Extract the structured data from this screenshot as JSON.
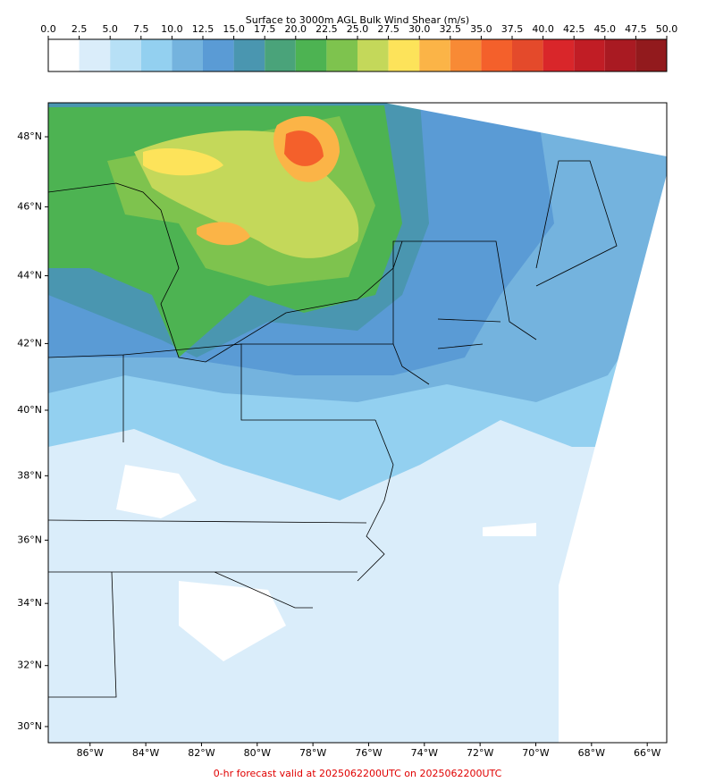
{
  "map": {
    "colorbar": {
      "title": "Surface to 3000m AGL Bulk Wind Shear (m/s)",
      "lim": [
        0,
        50
      ],
      "ticks": [
        {
          "value": 0,
          "label": "0.0"
        },
        2.5,
        {
          "value": 5,
          "label": "5.0"
        },
        7.5,
        {
          "value": 10,
          "label": "10.0"
        },
        12.5,
        {
          "value": 15,
          "label": "15.0"
        },
        17.5,
        {
          "value": 20,
          "label": "20.0"
        },
        22.5,
        {
          "value": 25,
          "label": "25.0"
        },
        27.5,
        {
          "value": 30,
          "label": "30.0"
        },
        32.5,
        {
          "value": 35,
          "label": "35.0"
        },
        37.5,
        {
          "value": 40,
          "label": "40.0"
        },
        42.5,
        {
          "value": 45,
          "label": "45.0"
        },
        47.5,
        {
          "value": 50,
          "label": "50.0"
        }
      ],
      "colors": [
        "#ffffff",
        "#daedfa",
        "#b7e0f6",
        "#93d0f0",
        "#74b3de",
        "#5a9bd5",
        "#4a96b0",
        "#4aa37a",
        "#4db352",
        "#7ec34e",
        "#c4d85a",
        "#fde35a",
        "#fbb447",
        "#f88a35",
        "#f4602b",
        "#e44a2b",
        "#d9262a",
        "#c11d25",
        "#a91a22",
        "#921a1d"
      ]
    },
    "lon_lim": [
      -87.5,
      -65.3
    ],
    "lat_lim": [
      29.5,
      49
    ],
    "lon_ticks": [
      {
        "value": -86,
        "label": "86°W"
      },
      {
        "value": -84,
        "label": "84°W"
      },
      {
        "value": -82,
        "label": "82°W"
      },
      {
        "value": -80,
        "label": "80°W"
      },
      {
        "value": -78,
        "label": "78°W"
      },
      {
        "value": -76,
        "label": "76°W"
      },
      {
        "value": -74,
        "label": "74°W"
      },
      {
        "value": -72,
        "label": "72°W"
      },
      {
        "value": -70,
        "label": "70°W"
      },
      {
        "value": -68,
        "label": "68°W"
      },
      {
        "value": -66,
        "label": "66°W"
      }
    ],
    "lat_ticks": [
      {
        "value": 30,
        "label": "30°N"
      },
      {
        "value": 32,
        "label": "32°N"
      },
      {
        "value": 34,
        "label": "34°N"
      },
      {
        "value": 36,
        "label": "36°N"
      },
      {
        "value": 38,
        "label": "38°N"
      },
      {
        "value": 40,
        "label": "40°N"
      },
      {
        "value": 42,
        "label": "42°N"
      },
      {
        "value": 44,
        "label": "44°N"
      },
      {
        "value": 46,
        "label": "46°N"
      },
      {
        "value": 48,
        "label": "48°N"
      }
    ],
    "footer": "0-hr forecast valid at 2025062200UTC on 2025062200UTC"
  }
}
